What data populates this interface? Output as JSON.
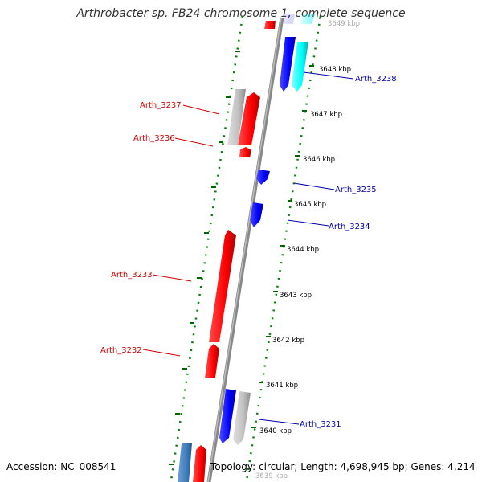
{
  "title": "Arthrobacter sp. FB24 chromosome 1, complete sequence",
  "footer": {
    "accession": "Accession: NC_008541",
    "topology": "Topology: circular; Length: 4,698,945 bp; Genes: 4,214"
  },
  "colors": {
    "plus_strand": "#ff0000",
    "minus_strand": "#0000ff",
    "pseudo": "#c0c0c0",
    "rna": "#00ffff",
    "backbone": "#888888",
    "ruler_dots": "#008000",
    "plus_label": "#d00000",
    "minus_label": "#0000aa"
  },
  "ruler_ticks": [
    "3649 kbp",
    "3648 kbp",
    "3647 kbp",
    "3646 kbp",
    "3645 kbp",
    "3644 kbp",
    "3643 kbp",
    "3642 kbp",
    "3641 kbp",
    "3640 kbp",
    "3639 kbp"
  ],
  "gene_labels": {
    "left": [
      "Arth_3237",
      "Arth_3236",
      "Arth_3233",
      "Arth_3232"
    ],
    "right": [
      "Arth_3238",
      "Arth_3235",
      "Arth_3234",
      "Arth_3231"
    ]
  }
}
